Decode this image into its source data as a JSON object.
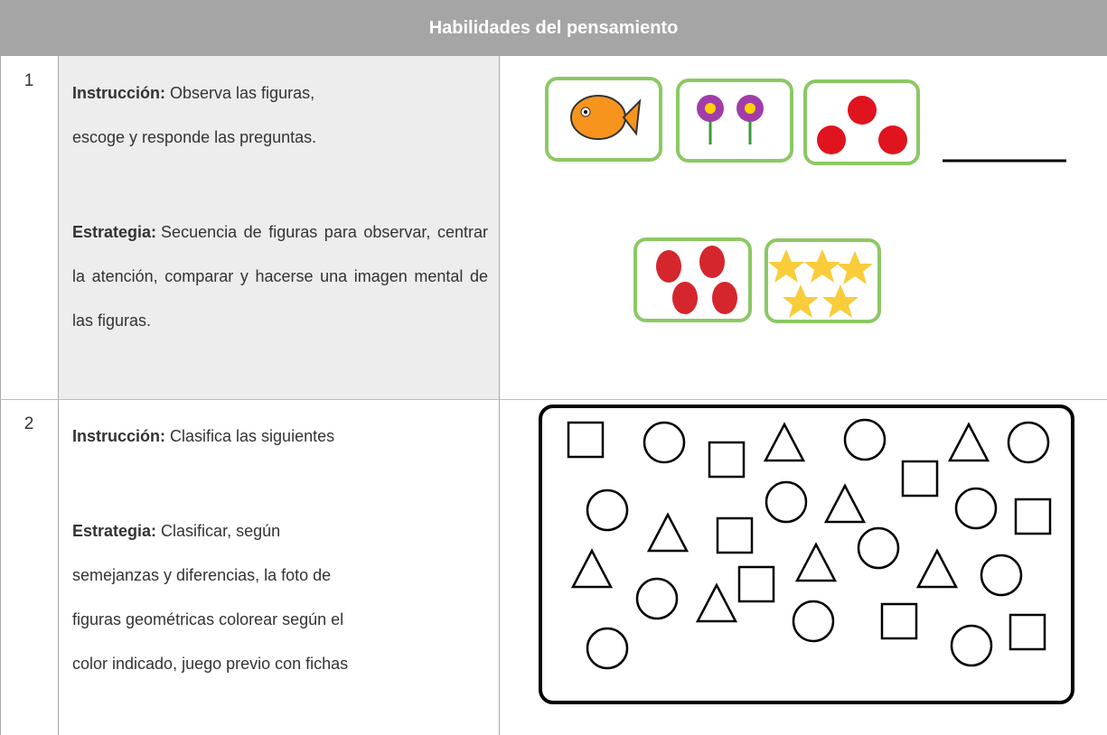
{
  "header": {
    "title": "Habilidades del pensamiento"
  },
  "rows": [
    {
      "number": "1",
      "instruction_label": "Instrucción:",
      "instruction": "Observa las figuras, escoge y responde las preguntas.",
      "strategy_label": "Estrategia:",
      "strategy": "Secuencia de figuras para observar, centrar la atención, comparar y hacerse una imagen mental de las figuras."
    },
    {
      "number": "2",
      "instruction_label": "Instrucción:",
      "instruction": "Clasifica las siguientes",
      "strategy_label": "Estrategia:",
      "strategy": "Clasificar, según semejanzas y diferencias, la foto de figuras geométricas colorear según el color indicado, juego previo con fichas"
    }
  ]
}
